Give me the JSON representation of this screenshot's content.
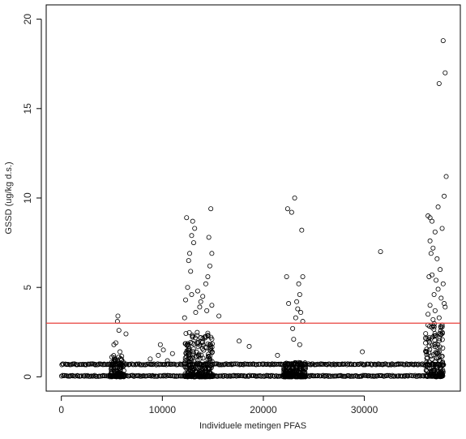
{
  "chart_data": {
    "type": "scatter",
    "xlabel": "Individuele metingen PFAS",
    "ylabel": "GSSD (ug/kg d.s.)",
    "xlim": [
      -1500,
      39500
    ],
    "ylim": [
      -0.8,
      20.8
    ],
    "xticks": [
      0,
      10000,
      20000,
      30000
    ],
    "xtick_labels": [
      "0",
      "10000",
      "20000",
      "30000"
    ],
    "yticks": [
      0,
      5,
      10,
      15,
      20
    ],
    "ytick_labels": [
      "0",
      "5",
      "10",
      "15",
      "20"
    ],
    "marker": "open-circle",
    "reference_line": {
      "y": 3,
      "color": "#e8413c"
    },
    "dense_bands": [
      {
        "x_from": 0,
        "x_to": 37800,
        "y": 0.05
      },
      {
        "x_from": 0,
        "x_to": 37800,
        "y": 0.7
      }
    ],
    "clusters": [
      {
        "x_from": 4800,
        "x_to": 6200,
        "y_max": 1.2
      },
      {
        "x_from": 12200,
        "x_to": 15000,
        "y_max": 2.5
      },
      {
        "x_from": 22000,
        "x_to": 24200,
        "y_max": 0.8
      },
      {
        "x_from": 36000,
        "x_to": 37800,
        "y_max": 3.0
      }
    ],
    "points": [
      [
        5600,
        3.4
      ],
      [
        5550,
        3.1
      ],
      [
        5700,
        2.6
      ],
      [
        5400,
        1.9
      ],
      [
        5200,
        1.8
      ],
      [
        6400,
        2.4
      ],
      [
        5800,
        1.4
      ],
      [
        5000,
        1.1
      ],
      [
        9800,
        1.8
      ],
      [
        10100,
        1.5
      ],
      [
        9600,
        1.2
      ],
      [
        10500,
        0.9
      ],
      [
        11000,
        1.3
      ],
      [
        8800,
        1.0
      ],
      [
        12400,
        8.9
      ],
      [
        13000,
        8.7
      ],
      [
        13200,
        8.3
      ],
      [
        13100,
        7.5
      ],
      [
        12700,
        6.9
      ],
      [
        12900,
        7.9
      ],
      [
        14800,
        9.4
      ],
      [
        14600,
        7.8
      ],
      [
        14900,
        6.9
      ],
      [
        14700,
        6.2
      ],
      [
        12600,
        6.5
      ],
      [
        12800,
        5.9
      ],
      [
        14500,
        5.6
      ],
      [
        14300,
        5.2
      ],
      [
        12500,
        5.0
      ],
      [
        13500,
        4.8
      ],
      [
        12900,
        4.6
      ],
      [
        14000,
        4.5
      ],
      [
        13800,
        4.2
      ],
      [
        14900,
        4.0
      ],
      [
        12300,
        4.3
      ],
      [
        13700,
        3.9
      ],
      [
        14400,
        3.7
      ],
      [
        15600,
        3.4
      ],
      [
        13300,
        3.6
      ],
      [
        12200,
        3.3
      ],
      [
        17600,
        2.0
      ],
      [
        18600,
        1.7
      ],
      [
        21400,
        1.2
      ],
      [
        22400,
        9.4
      ],
      [
        22800,
        9.2
      ],
      [
        23100,
        10.0
      ],
      [
        23800,
        8.2
      ],
      [
        22300,
        5.6
      ],
      [
        23500,
        5.2
      ],
      [
        23900,
        5.6
      ],
      [
        23600,
        4.6
      ],
      [
        22500,
        4.1
      ],
      [
        23300,
        4.2
      ],
      [
        23400,
        3.8
      ],
      [
        23700,
        3.6
      ],
      [
        23200,
        3.3
      ],
      [
        23900,
        3.1
      ],
      [
        22900,
        2.7
      ],
      [
        23000,
        2.1
      ],
      [
        23600,
        1.8
      ],
      [
        31600,
        7.0
      ],
      [
        29800,
        1.4
      ],
      [
        37800,
        18.8
      ],
      [
        37400,
        16.4
      ],
      [
        38000,
        17.0
      ],
      [
        38100,
        11.2
      ],
      [
        37900,
        10.1
      ],
      [
        36300,
        9.0
      ],
      [
        36500,
        8.9
      ],
      [
        36700,
        8.7
      ],
      [
        37300,
        9.5
      ],
      [
        37000,
        8.1
      ],
      [
        37700,
        8.3
      ],
      [
        36500,
        7.6
      ],
      [
        36800,
        7.2
      ],
      [
        37200,
        6.6
      ],
      [
        36600,
        6.9
      ],
      [
        37500,
        6.0
      ],
      [
        36700,
        5.7
      ],
      [
        37100,
        5.4
      ],
      [
        36400,
        5.6
      ],
      [
        37800,
        5.2
      ],
      [
        37300,
        4.9
      ],
      [
        36900,
        4.6
      ],
      [
        37600,
        4.4
      ],
      [
        37900,
        4.1
      ],
      [
        36500,
        4.0
      ],
      [
        38000,
        3.9
      ],
      [
        37000,
        3.7
      ],
      [
        36300,
        3.5
      ],
      [
        37400,
        3.3
      ],
      [
        36800,
        3.2
      ],
      [
        37700,
        2.9
      ]
    ]
  }
}
